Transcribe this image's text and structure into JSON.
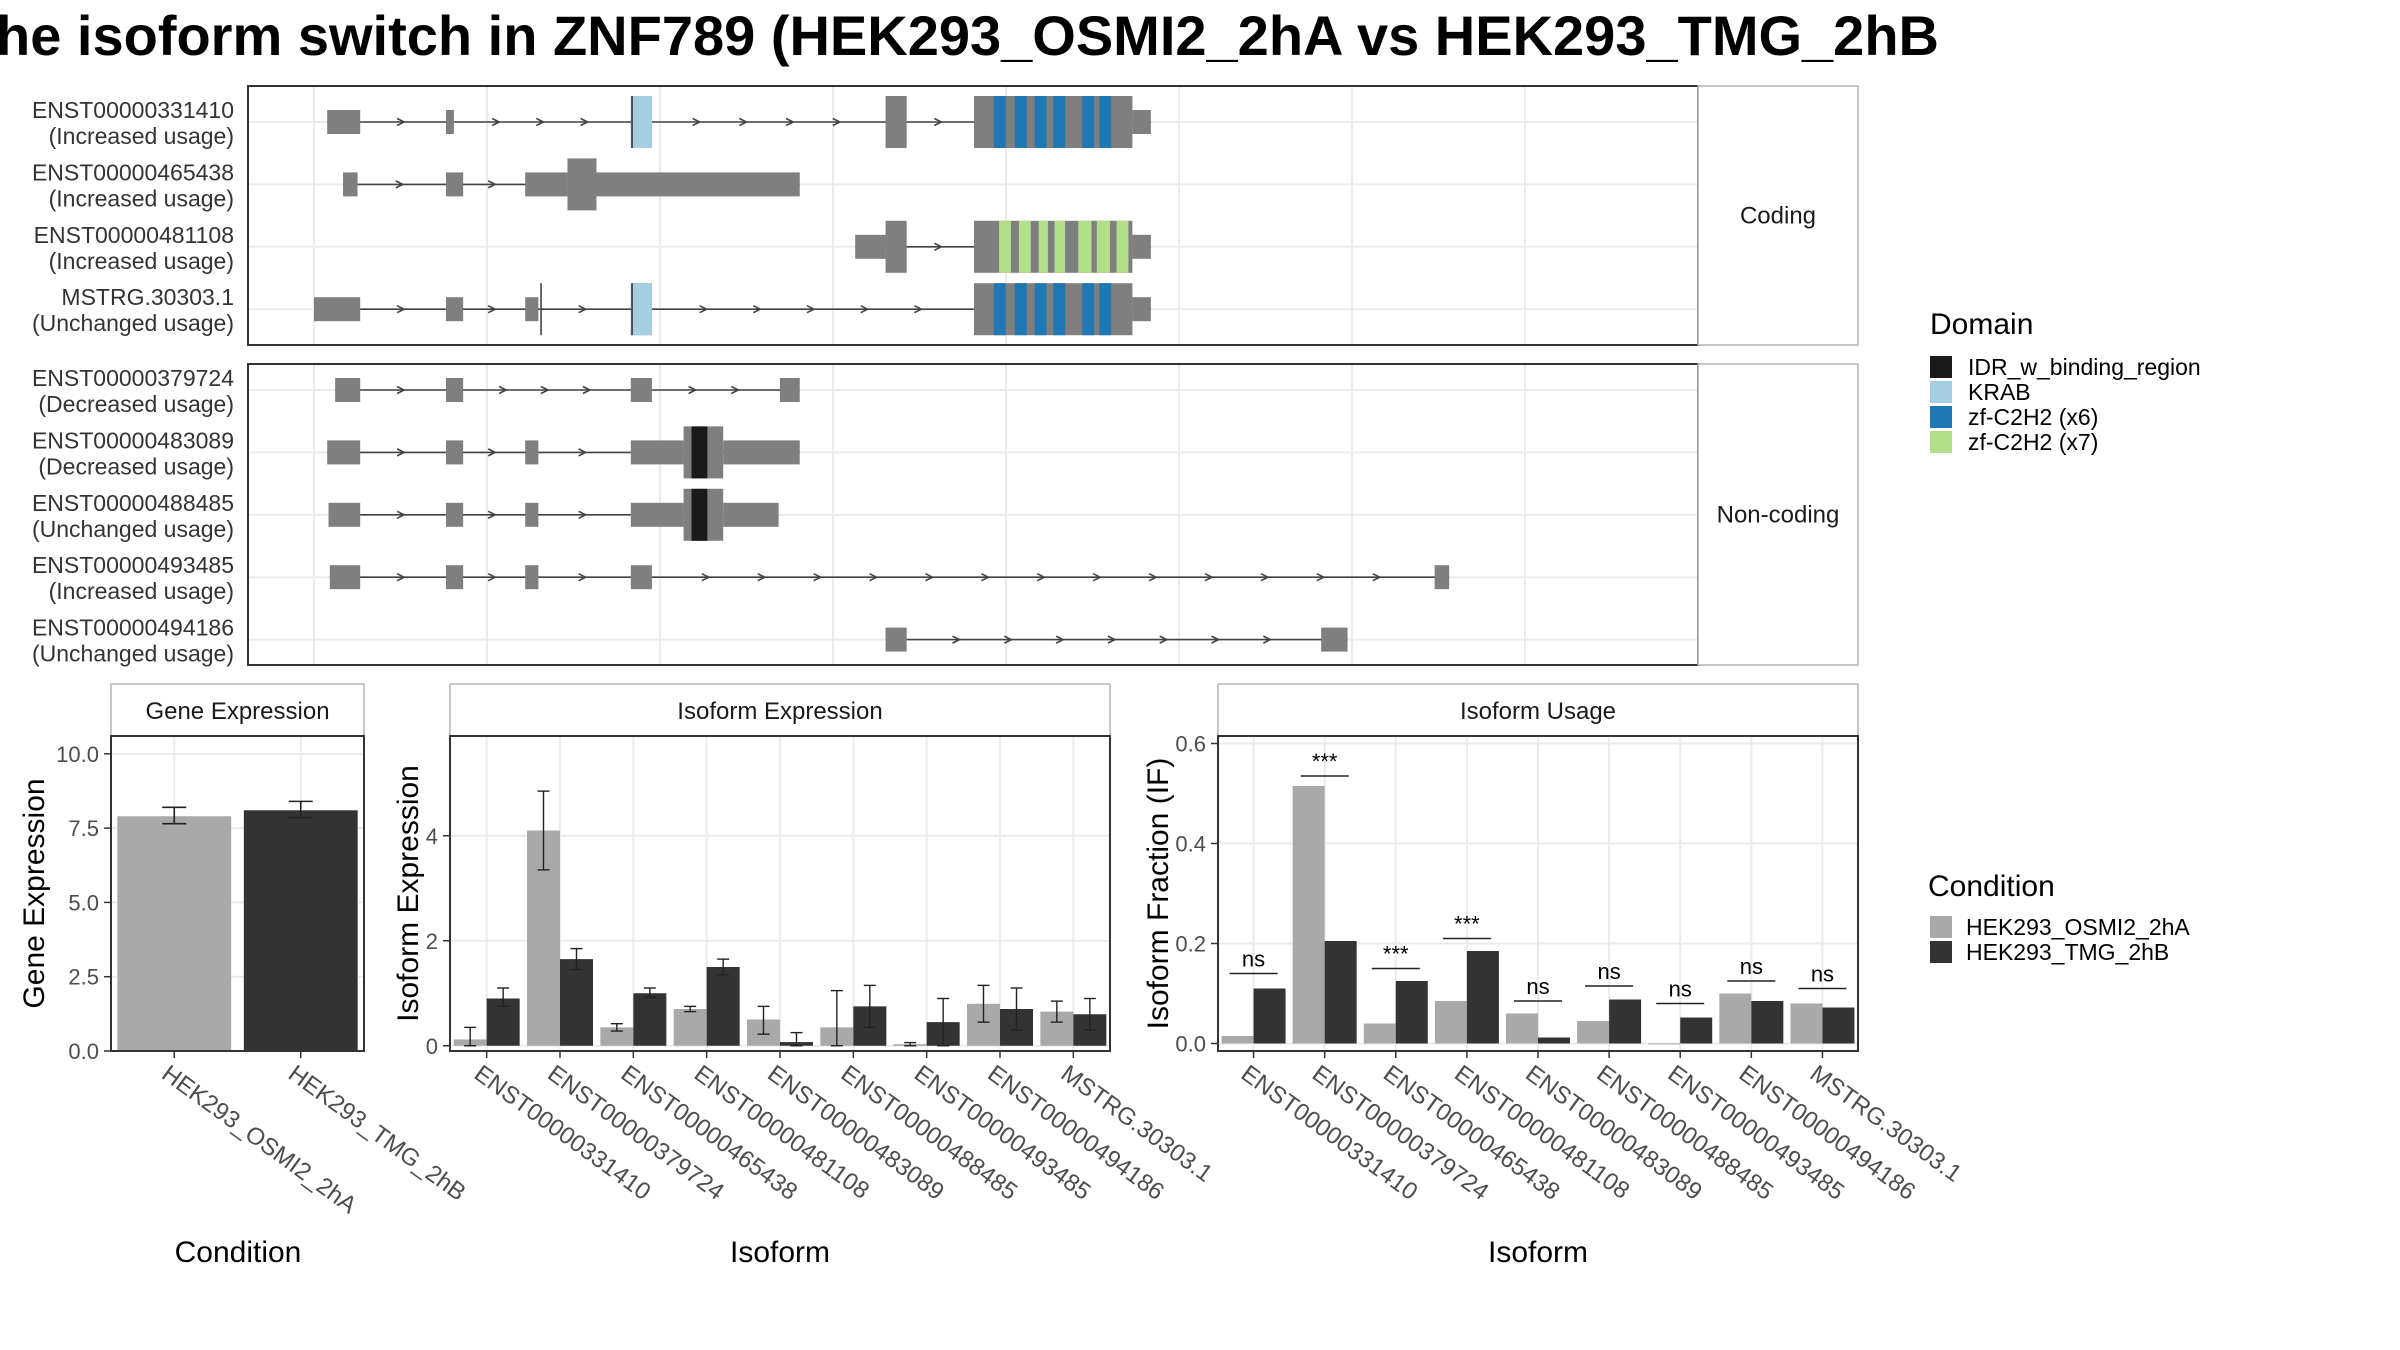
{
  "title": "he isoform switch in ZNF789 (HEK293_OSMI2_2hA vs HEK293_TMG_2hB",
  "colors": {
    "exon": "#7f7f7f",
    "cond1": "#a9a9a9",
    "cond2": "#333333",
    "IDR_w_binding_region": "#1a1a1a",
    "KRAB": "#a6cee3",
    "zf_C2H2_x6": "#1f78b4",
    "zf_C2H2_x7": "#b2df8a",
    "grid": "#ebebeb",
    "panel_border": "#333333",
    "strip_bg": "#ffffff"
  },
  "structure": {
    "facets": [
      "Coding",
      "Non-coding"
    ],
    "coding": [
      {
        "id": "ENST00000331410",
        "usage": "(Increased usage)",
        "exons": [
          [
            0.01,
            0.035,
            "s"
          ],
          [
            0.1,
            0.106,
            "s"
          ],
          [
            0.24,
            0.256,
            "t"
          ],
          [
            0.433,
            0.449,
            "t"
          ],
          [
            0.5,
            0.62,
            "t"
          ],
          [
            0.62,
            0.634,
            "s"
          ]
        ],
        "domains": [
          [
            0.241,
            0.256,
            "KRAB"
          ],
          [
            0.515,
            0.524,
            "zf_C2H2_x6"
          ],
          [
            0.531,
            0.54,
            "zf_C2H2_x6"
          ],
          [
            0.546,
            0.555,
            "zf_C2H2_x6"
          ],
          [
            0.56,
            0.569,
            "zf_C2H2_x6"
          ],
          [
            0.582,
            0.591,
            "zf_C2H2_x6"
          ],
          [
            0.595,
            0.604,
            "zf_C2H2_x6"
          ]
        ]
      },
      {
        "id": "ENST00000465438",
        "usage": "(Increased usage)",
        "exons": [
          [
            0.022,
            0.033,
            "s"
          ],
          [
            0.1,
            0.113,
            "s"
          ],
          [
            0.16,
            0.192,
            "s"
          ],
          [
            0.192,
            0.214,
            "t"
          ],
          [
            0.214,
            0.368,
            "s"
          ]
        ],
        "domains": []
      },
      {
        "id": "ENST00000481108",
        "usage": "(Increased usage)",
        "exons": [
          [
            0.41,
            0.433,
            "s"
          ],
          [
            0.433,
            0.449,
            "t"
          ],
          [
            0.5,
            0.62,
            "t"
          ],
          [
            0.62,
            0.634,
            "s"
          ]
        ],
        "domains": [
          [
            0.519,
            0.528,
            "zf_C2H2_x7"
          ],
          [
            0.534,
            0.543,
            "zf_C2H2_x7"
          ],
          [
            0.549,
            0.556,
            "zf_C2H2_x7"
          ],
          [
            0.561,
            0.569,
            "zf_C2H2_x7"
          ],
          [
            0.579,
            0.589,
            "zf_C2H2_x7"
          ],
          [
            0.593,
            0.603,
            "zf_C2H2_x7"
          ],
          [
            0.608,
            0.617,
            "zf_C2H2_x7"
          ]
        ]
      },
      {
        "id": "MSTRG.30303.1",
        "usage": "(Unchanged usage)",
        "exons": [
          [
            0.0,
            0.035,
            "s"
          ],
          [
            0.1,
            0.113,
            "s"
          ],
          [
            0.16,
            0.17,
            "s"
          ],
          [
            0.24,
            0.256,
            "t"
          ],
          [
            0.5,
            0.62,
            "t"
          ],
          [
            0.62,
            0.634,
            "s"
          ]
        ],
        "domains": [
          [
            0.241,
            0.256,
            "KRAB"
          ],
          [
            0.515,
            0.524,
            "zf_C2H2_x6"
          ],
          [
            0.531,
            0.54,
            "zf_C2H2_x6"
          ],
          [
            0.546,
            0.555,
            "zf_C2H2_x6"
          ],
          [
            0.56,
            0.569,
            "zf_C2H2_x6"
          ],
          [
            0.582,
            0.591,
            "zf_C2H2_x6"
          ],
          [
            0.595,
            0.604,
            "zf_C2H2_x6"
          ]
        ]
      }
    ],
    "noncoding": [
      {
        "id": "ENST00000379724",
        "usage": "(Decreased usage)",
        "exons": [
          [
            0.016,
            0.035,
            "s"
          ],
          [
            0.1,
            0.113,
            "s"
          ],
          [
            0.24,
            0.256,
            "s"
          ],
          [
            0.353,
            0.368,
            "s"
          ]
        ],
        "domains": []
      },
      {
        "id": "ENST00000483089",
        "usage": "(Decreased usage)",
        "exons": [
          [
            0.01,
            0.035,
            "s"
          ],
          [
            0.1,
            0.113,
            "s"
          ],
          [
            0.16,
            0.17,
            "s"
          ],
          [
            0.24,
            0.28,
            "s"
          ],
          [
            0.28,
            0.31,
            "t"
          ],
          [
            0.31,
            0.368,
            "s"
          ]
        ],
        "domains": [
          [
            0.286,
            0.298,
            "IDR_w_binding_region"
          ]
        ]
      },
      {
        "id": "ENST00000488485",
        "usage": "(Unchanged usage)",
        "exons": [
          [
            0.011,
            0.035,
            "s"
          ],
          [
            0.1,
            0.113,
            "s"
          ],
          [
            0.16,
            0.17,
            "s"
          ],
          [
            0.24,
            0.28,
            "s"
          ],
          [
            0.28,
            0.31,
            "t"
          ],
          [
            0.31,
            0.352,
            "s"
          ]
        ],
        "domains": [
          [
            0.286,
            0.298,
            "IDR_w_binding_region"
          ]
        ]
      },
      {
        "id": "ENST00000493485",
        "usage": "(Increased usage)",
        "exons": [
          [
            0.012,
            0.035,
            "s"
          ],
          [
            0.1,
            0.113,
            "s"
          ],
          [
            0.16,
            0.17,
            "s"
          ],
          [
            0.24,
            0.256,
            "s"
          ],
          [
            0.849,
            0.86,
            "s"
          ]
        ],
        "domains": []
      },
      {
        "id": "ENST00000494186",
        "usage": "(Unchanged usage)",
        "exons": [
          [
            0.433,
            0.449,
            "s"
          ],
          [
            0.763,
            0.783,
            "s"
          ]
        ],
        "domains": []
      }
    ]
  },
  "domain_legend": {
    "title": "Domain",
    "items": [
      {
        "label": "IDR_w_binding_region",
        "color": "#1a1a1a"
      },
      {
        "label": "KRAB",
        "color": "#a6cee3"
      },
      {
        "label": "zf-C2H2 (x6)",
        "color": "#1f78b4"
      },
      {
        "label": "zf-C2H2 (x7)",
        "color": "#b2df8a"
      }
    ]
  },
  "condition_legend": {
    "title": "Condition",
    "items": [
      {
        "label": "HEK293_OSMI2_2hA",
        "color": "#a9a9a9"
      },
      {
        "label": "HEK293_TMG_2hB",
        "color": "#333333"
      }
    ]
  },
  "chart_data": [
    {
      "type": "bar",
      "title": "Gene Expression",
      "xlabel": "Condition",
      "ylabel": "Gene Expression",
      "ylim": [
        0,
        10.6
      ],
      "yticks": [
        "0.0",
        "2.5",
        "5.0",
        "7.5",
        "10.0"
      ],
      "ytick_values": [
        0,
        2.5,
        5.0,
        7.5,
        10.0
      ],
      "categories": [
        "HEK293_OSMI2_2hA",
        "HEK293_TMG_2hB"
      ],
      "values": [
        7.9,
        8.1
      ],
      "errors": [
        [
          7.65,
          8.2
        ],
        [
          7.85,
          8.4
        ]
      ]
    },
    {
      "type": "bar",
      "title": "Isoform Expression",
      "xlabel": "Isoform",
      "ylabel": "Isoform Expression",
      "ylim": [
        -0.1,
        5.9
      ],
      "yticks": [
        "0",
        "2",
        "4"
      ],
      "ytick_values": [
        0,
        2,
        4
      ],
      "categories": [
        "ENST00000331410",
        "ENST00000379724",
        "ENST00000465438",
        "ENST00000481108",
        "ENST00000483089",
        "ENST00000488485",
        "ENST00000493485",
        "ENST00000494186",
        "MSTRG.30303.1"
      ],
      "series": [
        {
          "name": "HEK293_OSMI2_2hA",
          "values": [
            0.12,
            4.1,
            0.35,
            0.7,
            0.5,
            0.35,
            0.03,
            0.8,
            0.65
          ],
          "errors": [
            [
              0.0,
              0.35
            ],
            [
              3.35,
              4.85
            ],
            [
              0.28,
              0.42
            ],
            [
              0.65,
              0.75
            ],
            [
              0.22,
              0.75
            ],
            [
              0.0,
              1.05
            ],
            [
              0.0,
              0.06
            ],
            [
              0.45,
              1.15
            ],
            [
              0.45,
              0.85
            ]
          ]
        },
        {
          "name": "HEK293_TMG_2hB",
          "values": [
            0.9,
            1.65,
            1.0,
            1.5,
            0.07,
            0.75,
            0.45,
            0.7,
            0.6
          ],
          "errors": [
            [
              0.75,
              1.1
            ],
            [
              1.45,
              1.85
            ],
            [
              0.92,
              1.1
            ],
            [
              1.35,
              1.65
            ],
            [
              0.0,
              0.25
            ],
            [
              0.35,
              1.15
            ],
            [
              0.0,
              0.9
            ],
            [
              0.3,
              1.1
            ],
            [
              0.3,
              0.9
            ]
          ]
        }
      ]
    },
    {
      "type": "bar",
      "title": "Isoform Usage",
      "xlabel": "Isoform",
      "ylabel": "Isoform Fraction (IF)",
      "ylim": [
        -0.015,
        0.615
      ],
      "yticks": [
        "0.0",
        "0.2",
        "0.4",
        "0.6"
      ],
      "ytick_values": [
        0,
        0.2,
        0.4,
        0.6
      ],
      "categories": [
        "ENST00000331410",
        "ENST00000379724",
        "ENST00000465438",
        "ENST00000481108",
        "ENST00000483089",
        "ENST00000488485",
        "ENST00000493485",
        "ENST00000494186",
        "MSTRG.30303.1"
      ],
      "series": [
        {
          "name": "HEK293_OSMI2_2hA",
          "values": [
            0.015,
            0.515,
            0.04,
            0.085,
            0.06,
            0.045,
            0.0,
            0.1,
            0.08
          ]
        },
        {
          "name": "HEK293_TMG_2hB",
          "values": [
            0.11,
            0.205,
            0.125,
            0.185,
            0.012,
            0.088,
            0.052,
            0.085,
            0.072
          ]
        }
      ],
      "significance": [
        "ns",
        "***",
        "***",
        "***",
        "ns",
        "ns",
        "ns",
        "ns",
        "ns"
      ],
      "significance_y": [
        0.14,
        0.535,
        0.15,
        0.21,
        0.085,
        0.115,
        0.08,
        0.125,
        0.11
      ]
    }
  ]
}
